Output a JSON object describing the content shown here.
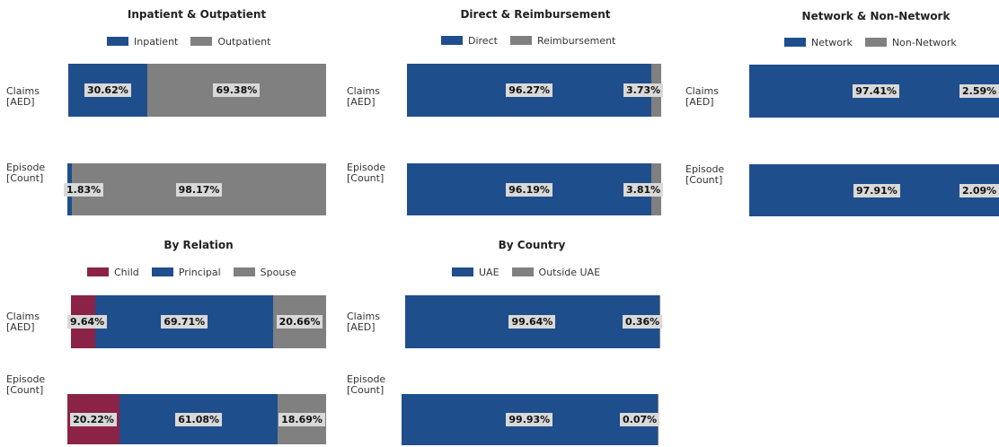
{
  "colors": {
    "navy": "#1f4e8c",
    "gray": "#808080",
    "maroon": "#8b2346",
    "label_bg": "#d9d9d9"
  },
  "chart_data": [
    {
      "type": "bar",
      "stacked": "100%",
      "orientation": "horizontal",
      "title": "Inpatient & Outpatient",
      "categories": [
        "Claims [AED]",
        "Episode [Count]"
      ],
      "category_lines": [
        [
          "Claims",
          "[AED]"
        ],
        [
          "Episode",
          "[Count]"
        ]
      ],
      "series": [
        {
          "name": "Inpatient",
          "color": "#1f4e8c",
          "values": [
            30.62,
            1.83
          ],
          "labels": [
            "30.62%",
            "1.83%"
          ]
        },
        {
          "name": "Outpatient",
          "color": "#808080",
          "values": [
            69.38,
            98.17
          ],
          "labels": [
            "69.38%",
            "98.17%"
          ]
        }
      ],
      "legend": "top",
      "xlim": [
        0,
        100
      ]
    },
    {
      "type": "bar",
      "stacked": "100%",
      "orientation": "horizontal",
      "title": "Direct & Reimbursement",
      "categories": [
        "Claims [AED]",
        "Episode [Count]"
      ],
      "category_lines": [
        [
          "Claims",
          "[AED]"
        ],
        [
          "Episode",
          "[Count]"
        ]
      ],
      "series": [
        {
          "name": "Direct",
          "color": "#1f4e8c",
          "values": [
            96.27,
            96.19
          ],
          "labels": [
            "96.27%",
            "96.19%"
          ]
        },
        {
          "name": "Reimbursement",
          "color": "#808080",
          "values": [
            3.73,
            3.81
          ],
          "labels": [
            "3.73%",
            "3.81%"
          ]
        }
      ],
      "legend": "top",
      "xlim": [
        0,
        100
      ]
    },
    {
      "type": "bar",
      "stacked": "100%",
      "orientation": "horizontal",
      "title": "Network & Non-Network",
      "categories": [
        "Claims [AED]",
        "Episode [Count]"
      ],
      "category_lines": [
        [
          "Claims",
          "[AED]"
        ],
        [
          "Episode",
          "[Count]"
        ]
      ],
      "series": [
        {
          "name": "Network",
          "color": "#1f4e8c",
          "values": [
            97.41,
            97.91
          ],
          "labels": [
            "97.41%",
            "97.91%"
          ]
        },
        {
          "name": "Non-Network",
          "color": "#808080",
          "values": [
            2.59,
            2.09
          ],
          "labels": [
            "2.59%",
            "2.09%"
          ]
        }
      ],
      "legend": "top",
      "xlim": [
        0,
        100
      ]
    },
    {
      "type": "bar",
      "stacked": "100%",
      "orientation": "horizontal",
      "title": "By Relation",
      "categories": [
        "Claims [AED]",
        "Episode [Count]"
      ],
      "category_lines": [
        [
          "Claims",
          "[AED]"
        ],
        [
          "Episode",
          "[Count]"
        ]
      ],
      "series": [
        {
          "name": "Child",
          "color": "#8b2346",
          "values": [
            9.64,
            20.22
          ],
          "labels": [
            "9.64%",
            "20.22%"
          ]
        },
        {
          "name": "Principal",
          "color": "#1f4e8c",
          "values": [
            69.71,
            61.08
          ],
          "labels": [
            "69.71%",
            "61.08%"
          ]
        },
        {
          "name": "Spouse",
          "color": "#808080",
          "values": [
            20.66,
            18.69
          ],
          "labels": [
            "20.66%",
            "18.69%"
          ]
        }
      ],
      "legend": "top",
      "xlim": [
        0,
        100
      ]
    },
    {
      "type": "bar",
      "stacked": "100%",
      "orientation": "horizontal",
      "title": "By Country",
      "categories": [
        "Claims [AED]",
        "Episode [Count]"
      ],
      "category_lines": [
        [
          "Claims",
          "[AED]"
        ],
        [
          "Episode",
          "[Count]"
        ]
      ],
      "series": [
        {
          "name": "UAE",
          "color": "#1f4e8c",
          "values": [
            99.64,
            99.93
          ],
          "labels": [
            "99.64%",
            "99.93%"
          ]
        },
        {
          "name": "Outside UAE",
          "color": "#808080",
          "values": [
            0.36,
            0.07
          ],
          "labels": [
            "0.36%",
            "0.07%"
          ]
        }
      ],
      "legend": "top",
      "xlim": [
        0,
        100
      ]
    }
  ]
}
